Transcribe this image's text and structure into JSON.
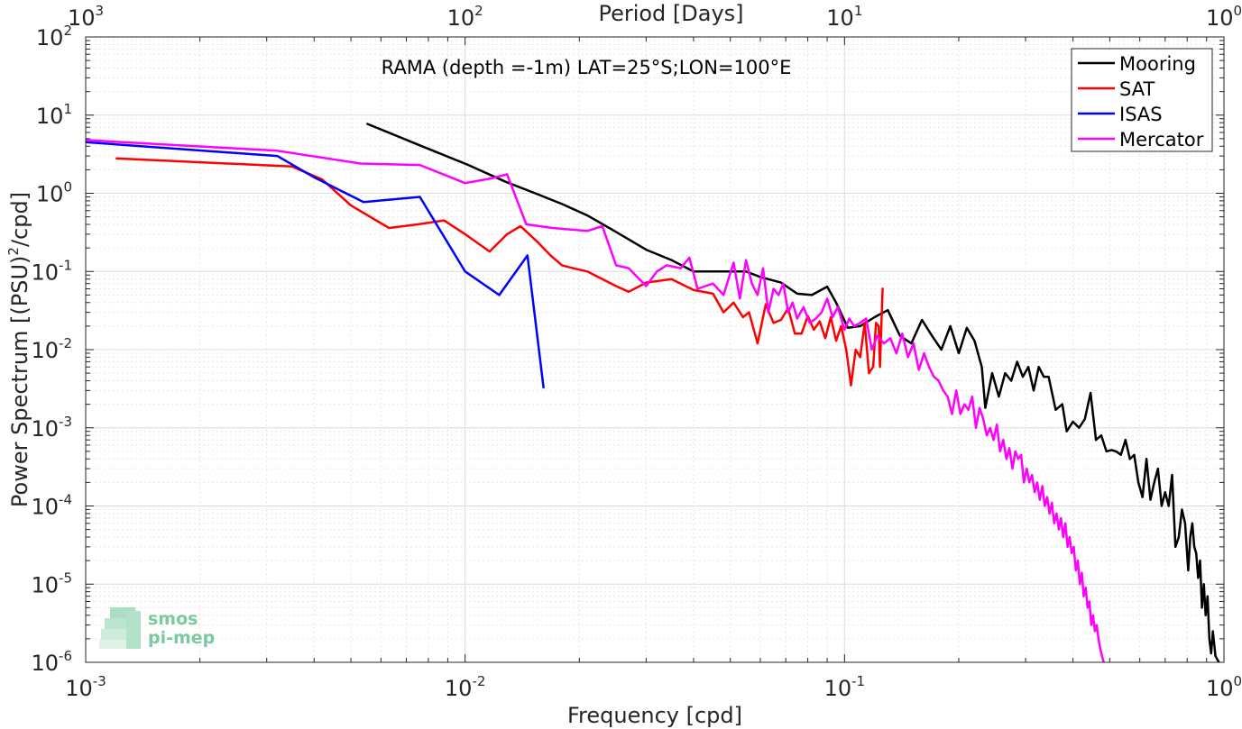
{
  "chart_data": {
    "type": "line",
    "title": "RAMA (depth =-1m) LAT=25°S;LON=100°E",
    "xlabel": "Frequency [cpd]",
    "ylabel": "Power Spectrum [(PSU)",
    "ylabel_sup": "2",
    "ylabel_tail": "/cpd]",
    "top_xlabel": "Period [Days]",
    "xscale": "log",
    "yscale": "log",
    "xlim": [
      0.001,
      1
    ],
    "ylim": [
      1e-06,
      100
    ],
    "grid": true,
    "legend_position": "top-right",
    "x_ticks": [
      {
        "base": "10",
        "exp": "-3",
        "value": 0.001
      },
      {
        "base": "10",
        "exp": "-2",
        "value": 0.01
      },
      {
        "base": "10",
        "exp": "-1",
        "value": 0.1
      },
      {
        "base": "10",
        "exp": "0",
        "value": 1
      }
    ],
    "top_x_ticks": [
      {
        "base": "10",
        "exp": "3",
        "value": 0.001
      },
      {
        "base": "10",
        "exp": "2",
        "value": 0.01
      },
      {
        "base": "10",
        "exp": "1",
        "value": 0.1
      },
      {
        "base": "10",
        "exp": "0",
        "value": 1
      }
    ],
    "y_ticks": [
      {
        "base": "10",
        "exp": "2",
        "value": 100
      },
      {
        "base": "10",
        "exp": "1",
        "value": 10
      },
      {
        "base": "10",
        "exp": "0",
        "value": 1
      },
      {
        "base": "10",
        "exp": "-1",
        "value": 0.1
      },
      {
        "base": "10",
        "exp": "-2",
        "value": 0.01
      },
      {
        "base": "10",
        "exp": "-3",
        "value": 0.001
      },
      {
        "base": "10",
        "exp": "-4",
        "value": 0.0001
      },
      {
        "base": "10",
        "exp": "-5",
        "value": 1e-05
      },
      {
        "base": "10",
        "exp": "-6",
        "value": 1e-06
      }
    ],
    "series": [
      {
        "name": "Mooring",
        "color": "#000000",
        "points": [
          [
            0.0055,
            7.8
          ],
          [
            0.0077,
            4.0
          ],
          [
            0.0102,
            2.3
          ],
          [
            0.0128,
            1.4
          ],
          [
            0.0153,
            1.0
          ],
          [
            0.018,
            0.73
          ],
          [
            0.021,
            0.52
          ],
          [
            0.025,
            0.32
          ],
          [
            0.03,
            0.19
          ],
          [
            0.035,
            0.14
          ],
          [
            0.04,
            0.1
          ],
          [
            0.045,
            0.1
          ],
          [
            0.05,
            0.1
          ],
          [
            0.055,
            0.1
          ],
          [
            0.06,
            0.085
          ],
          [
            0.068,
            0.072
          ],
          [
            0.075,
            0.052
          ],
          [
            0.082,
            0.05
          ],
          [
            0.09,
            0.064
          ],
          [
            0.095,
            0.04
          ],
          [
            0.102,
            0.019
          ],
          [
            0.11,
            0.02
          ],
          [
            0.12,
            0.026
          ],
          [
            0.13,
            0.032
          ],
          [
            0.14,
            0.015
          ],
          [
            0.15,
            0.012
          ],
          [
            0.16,
            0.024
          ],
          [
            0.17,
            0.015
          ],
          [
            0.18,
            0.01
          ],
          [
            0.19,
            0.02
          ],
          [
            0.2,
            0.009
          ],
          [
            0.21,
            0.019
          ],
          [
            0.22,
            0.013
          ],
          [
            0.23,
            0.006
          ],
          [
            0.235,
            0.0018
          ],
          [
            0.245,
            0.005
          ],
          [
            0.255,
            0.0025
          ],
          [
            0.265,
            0.005
          ],
          [
            0.275,
            0.004
          ],
          [
            0.285,
            0.007
          ],
          [
            0.295,
            0.0045
          ],
          [
            0.305,
            0.006
          ],
          [
            0.315,
            0.003
          ],
          [
            0.325,
            0.006
          ],
          [
            0.335,
            0.0045
          ],
          [
            0.345,
            0.0045
          ],
          [
            0.36,
            0.0017
          ],
          [
            0.375,
            0.002
          ],
          [
            0.385,
            0.0009
          ],
          [
            0.4,
            0.0012
          ],
          [
            0.415,
            0.001
          ],
          [
            0.43,
            0.0013
          ],
          [
            0.445,
            0.0028
          ],
          [
            0.46,
            0.0007
          ],
          [
            0.475,
            0.0008
          ],
          [
            0.49,
            0.0005
          ],
          [
            0.505,
            0.00052
          ],
          [
            0.52,
            0.0005
          ],
          [
            0.535,
            0.00045
          ],
          [
            0.55,
            0.0007
          ],
          [
            0.565,
            0.0004
          ],
          [
            0.58,
            0.00045
          ],
          [
            0.595,
            0.0002
          ],
          [
            0.61,
            0.00013
          ],
          [
            0.625,
            0.0004
          ],
          [
            0.64,
            0.00012
          ],
          [
            0.655,
            0.0002
          ],
          [
            0.67,
            0.0003
          ],
          [
            0.685,
            0.0001
          ],
          [
            0.7,
            0.00015
          ],
          [
            0.715,
            0.0001
          ],
          [
            0.73,
            0.00025
          ],
          [
            0.745,
            3e-05
          ],
          [
            0.76,
            4e-05
          ],
          [
            0.775,
            9e-05
          ],
          [
            0.79,
            6e-05
          ],
          [
            0.805,
            1.5e-05
          ],
          [
            0.815,
            4e-05
          ],
          [
            0.825,
            6e-05
          ],
          [
            0.835,
            3e-05
          ],
          [
            0.845,
            2.5e-05
          ],
          [
            0.855,
            1.2e-05
          ],
          [
            0.865,
            2e-05
          ],
          [
            0.875,
            5e-06
          ],
          [
            0.885,
            1e-05
          ],
          [
            0.895,
            4e-06
          ],
          [
            0.905,
            7e-06
          ],
          [
            0.915,
            2e-06
          ],
          [
            0.925,
            1.3e-06
          ],
          [
            0.935,
            2.5e-06
          ],
          [
            0.95,
            1.2e-06
          ],
          [
            0.97,
            1e-06
          ]
        ]
      },
      {
        "name": "SAT",
        "color": "#ff0000",
        "points": [
          [
            0.0012,
            2.8
          ],
          [
            0.0035,
            2.2
          ],
          [
            0.0042,
            1.5
          ],
          [
            0.005,
            0.7
          ],
          [
            0.0063,
            0.36
          ],
          [
            0.0075,
            0.4
          ],
          [
            0.0088,
            0.45
          ],
          [
            0.01,
            0.3
          ],
          [
            0.0116,
            0.18
          ],
          [
            0.0129,
            0.3
          ],
          [
            0.014,
            0.38
          ],
          [
            0.0155,
            0.24
          ],
          [
            0.0168,
            0.16
          ],
          [
            0.018,
            0.12
          ],
          [
            0.0193,
            0.11
          ],
          [
            0.021,
            0.1
          ],
          [
            0.023,
            0.08
          ],
          [
            0.025,
            0.065
          ],
          [
            0.027,
            0.055
          ],
          [
            0.03,
            0.072
          ],
          [
            0.035,
            0.08
          ],
          [
            0.04,
            0.058
          ],
          [
            0.045,
            0.052
          ],
          [
            0.048,
            0.03
          ],
          [
            0.051,
            0.04
          ],
          [
            0.054,
            0.026
          ],
          [
            0.056,
            0.03
          ],
          [
            0.059,
            0.012
          ],
          [
            0.062,
            0.038
          ],
          [
            0.065,
            0.022
          ],
          [
            0.068,
            0.024
          ],
          [
            0.071,
            0.034
          ],
          [
            0.074,
            0.016
          ],
          [
            0.077,
            0.016
          ],
          [
            0.08,
            0.027
          ],
          [
            0.083,
            0.018
          ],
          [
            0.086,
            0.023
          ],
          [
            0.089,
            0.014
          ],
          [
            0.092,
            0.026
          ],
          [
            0.095,
            0.013
          ],
          [
            0.098,
            0.02
          ],
          [
            0.101,
            0.01
          ],
          [
            0.104,
            0.0035
          ],
          [
            0.107,
            0.01
          ],
          [
            0.11,
            0.008
          ],
          [
            0.113,
            0.022
          ],
          [
            0.116,
            0.005
          ],
          [
            0.119,
            0.006
          ],
          [
            0.121,
            0.022
          ],
          [
            0.123,
            0.02
          ],
          [
            0.124,
            0.006
          ],
          [
            0.126,
            0.062
          ]
        ]
      },
      {
        "name": "ISAS",
        "color": "#0000ff",
        "points": [
          [
            0.001,
            4.5
          ],
          [
            0.0032,
            3.0
          ],
          [
            0.004,
            1.6
          ],
          [
            0.0054,
            0.77
          ],
          [
            0.0076,
            0.9
          ],
          [
            0.01,
            0.1
          ],
          [
            0.0123,
            0.05
          ],
          [
            0.0146,
            0.16
          ],
          [
            0.0161,
            0.0032
          ]
        ]
      },
      {
        "name": "Mercator",
        "color": "#ff00ff",
        "points": [
          [
            0.001,
            4.8
          ],
          [
            0.0032,
            3.5
          ],
          [
            0.0053,
            2.4
          ],
          [
            0.0076,
            2.3
          ],
          [
            0.01,
            1.35
          ],
          [
            0.0117,
            1.55
          ],
          [
            0.0129,
            1.75
          ],
          [
            0.0145,
            0.4
          ],
          [
            0.017,
            0.36
          ],
          [
            0.021,
            0.33
          ],
          [
            0.023,
            0.38
          ],
          [
            0.025,
            0.12
          ],
          [
            0.027,
            0.11
          ],
          [
            0.03,
            0.065
          ],
          [
            0.032,
            0.1
          ],
          [
            0.034,
            0.12
          ],
          [
            0.037,
            0.11
          ],
          [
            0.039,
            0.15
          ],
          [
            0.041,
            0.06
          ],
          [
            0.043,
            0.065
          ],
          [
            0.045,
            0.07
          ],
          [
            0.048,
            0.05
          ],
          [
            0.051,
            0.13
          ],
          [
            0.053,
            0.045
          ],
          [
            0.055,
            0.14
          ],
          [
            0.057,
            0.07
          ],
          [
            0.059,
            0.05
          ],
          [
            0.061,
            0.11
          ],
          [
            0.063,
            0.03
          ],
          [
            0.065,
            0.06
          ],
          [
            0.067,
            0.05
          ],
          [
            0.069,
            0.07
          ],
          [
            0.071,
            0.03
          ],
          [
            0.073,
            0.04
          ],
          [
            0.075,
            0.025
          ],
          [
            0.078,
            0.035
          ],
          [
            0.081,
            0.022
          ],
          [
            0.084,
            0.025
          ],
          [
            0.087,
            0.03
          ],
          [
            0.09,
            0.045
          ],
          [
            0.093,
            0.026
          ],
          [
            0.096,
            0.035
          ],
          [
            0.1,
            0.018
          ],
          [
            0.103,
            0.025
          ],
          [
            0.106,
            0.02
          ],
          [
            0.11,
            0.022
          ],
          [
            0.114,
            0.025
          ],
          [
            0.118,
            0.01
          ],
          [
            0.122,
            0.015
          ],
          [
            0.127,
            0.012
          ],
          [
            0.132,
            0.014
          ],
          [
            0.137,
            0.009
          ],
          [
            0.142,
            0.016
          ],
          [
            0.147,
            0.008
          ],
          [
            0.152,
            0.012
          ],
          [
            0.157,
            0.0055
          ],
          [
            0.162,
            0.009
          ],
          [
            0.167,
            0.006
          ],
          [
            0.172,
            0.0045
          ],
          [
            0.177,
            0.004
          ],
          [
            0.182,
            0.003
          ],
          [
            0.187,
            0.0025
          ],
          [
            0.192,
            0.0015
          ],
          [
            0.197,
            0.003
          ],
          [
            0.202,
            0.0015
          ],
          [
            0.207,
            0.002
          ],
          [
            0.212,
            0.0017
          ],
          [
            0.217,
            0.0025
          ],
          [
            0.222,
            0.001
          ],
          [
            0.227,
            0.0018
          ],
          [
            0.232,
            0.0013
          ],
          [
            0.237,
            0.0008
          ],
          [
            0.242,
            0.001
          ],
          [
            0.247,
            0.0007
          ],
          [
            0.252,
            0.0011
          ],
          [
            0.257,
            0.0005
          ],
          [
            0.262,
            0.0007
          ],
          [
            0.267,
            0.0004
          ],
          [
            0.272,
            0.00055
          ],
          [
            0.277,
            0.0003
          ],
          [
            0.282,
            0.0005
          ],
          [
            0.287,
            0.0004
          ],
          [
            0.292,
            0.00045
          ],
          [
            0.297,
            0.0002
          ],
          [
            0.302,
            0.0003
          ],
          [
            0.307,
            0.0002
          ],
          [
            0.312,
            0.00025
          ],
          [
            0.317,
            0.00015
          ],
          [
            0.322,
            0.0002
          ],
          [
            0.327,
            0.00012
          ],
          [
            0.332,
            0.00018
          ],
          [
            0.337,
            0.0001
          ],
          [
            0.342,
            0.00013
          ],
          [
            0.347,
            8e-05
          ],
          [
            0.352,
            0.00011
          ],
          [
            0.357,
            6e-05
          ],
          [
            0.362,
            8e-05
          ],
          [
            0.367,
            5e-05
          ],
          [
            0.372,
            7e-05
          ],
          [
            0.377,
            4e-05
          ],
          [
            0.382,
            6e-05
          ],
          [
            0.387,
            3e-05
          ],
          [
            0.392,
            4e-05
          ],
          [
            0.397,
            2.5e-05
          ],
          [
            0.402,
            3e-05
          ],
          [
            0.407,
            1.5e-05
          ],
          [
            0.412,
            2e-05
          ],
          [
            0.417,
            1e-05
          ],
          [
            0.422,
            1.4e-05
          ],
          [
            0.427,
            7e-06
          ],
          [
            0.432,
            9e-06
          ],
          [
            0.437,
            5e-06
          ],
          [
            0.442,
            6e-06
          ],
          [
            0.447,
            3e-06
          ],
          [
            0.452,
            4e-06
          ],
          [
            0.457,
            2.5e-06
          ],
          [
            0.462,
            3e-06
          ],
          [
            0.467,
            2e-06
          ],
          [
            0.472,
            1.5e-06
          ],
          [
            0.477,
            1.2e-06
          ],
          [
            0.482,
            1e-06
          ]
        ]
      }
    ]
  },
  "logo": {
    "line1": "smos",
    "line2": "pi-mep"
  }
}
